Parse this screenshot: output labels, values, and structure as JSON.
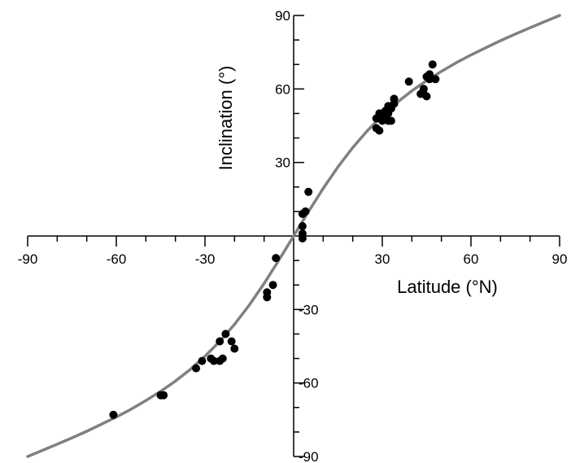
{
  "chart_data": {
    "type": "scatter",
    "title": "",
    "xlabel": "Latitude (°N)",
    "ylabel": "Inclination (°)",
    "xlim": [
      -90,
      90
    ],
    "ylim": [
      -90,
      90
    ],
    "xticks": [
      -90,
      -60,
      -30,
      30,
      60,
      90
    ],
    "yticks": [
      90,
      60,
      30,
      -30,
      -60,
      -90
    ],
    "grid": false,
    "legend": "none",
    "colors": {
      "points": "#000000",
      "curve": "#808080",
      "axes": "#000000"
    },
    "curve": {
      "equation": "tan(I) = 2 tan(latitude)",
      "x": [
        -90,
        -85,
        -80,
        -75,
        -70,
        -65,
        -60,
        -55,
        -50,
        -45,
        -40,
        -35,
        -30,
        -25,
        -20,
        -15,
        -10,
        -5,
        0,
        5,
        10,
        15,
        20,
        25,
        30,
        35,
        40,
        45,
        50,
        55,
        60,
        65,
        70,
        75,
        80,
        85,
        90
      ],
      "y": [
        -90,
        -87.5,
        -85.0,
        -82.4,
        -79.7,
        -76.8,
        -73.9,
        -70.7,
        -67.2,
        -63.4,
        -59.2,
        -54.5,
        -49.1,
        -43.0,
        -36.1,
        -28.2,
        -19.4,
        -9.9,
        0,
        9.9,
        19.4,
        28.2,
        36.1,
        43.0,
        49.1,
        54.5,
        59.2,
        63.4,
        67.2,
        70.7,
        73.9,
        76.8,
        79.7,
        82.4,
        85.0,
        87.5,
        90
      ]
    },
    "points": {
      "x": [
        -61,
        -45,
        -44,
        -33,
        -31,
        -28,
        -27,
        -25,
        -24,
        -25,
        -23,
        -21,
        -20,
        -9,
        -9,
        -7,
        -6,
        3,
        3,
        3,
        3,
        4,
        5,
        28,
        28,
        29,
        29,
        29,
        30,
        31,
        31,
        31,
        32,
        32,
        32,
        33,
        33,
        33,
        34,
        34,
        39,
        43,
        44,
        44,
        45,
        45,
        46,
        46,
        47,
        48
      ],
      "y": [
        -73,
        -65,
        -65,
        -54,
        -51,
        -50,
        -51,
        -51,
        -50,
        -43,
        -40,
        -43,
        -46,
        -23,
        -25,
        -20,
        -9,
        9,
        4,
        1,
        -1,
        10,
        18,
        48,
        44,
        50,
        48,
        43,
        47,
        49,
        51,
        48,
        50,
        53,
        47,
        52,
        47,
        53,
        54,
        56,
        63,
        58,
        60,
        58,
        57,
        65,
        64,
        66,
        70,
        64
      ]
    }
  }
}
